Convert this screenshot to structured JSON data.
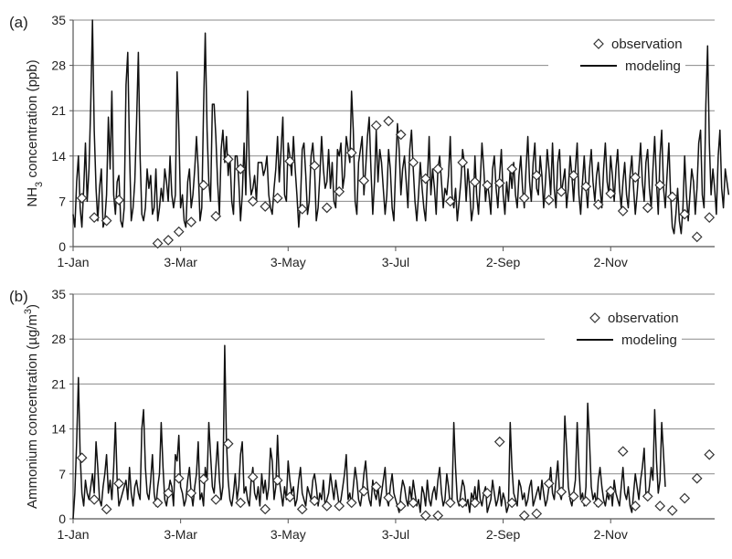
{
  "chart_data": [
    {
      "panel_label": "(a)",
      "type": "line",
      "ylabel_main": "NH",
      "ylabel_sub": "3",
      "ylabel_rest": " concentration (ppb)",
      "ylim": [
        0,
        35
      ],
      "yticks": [
        0,
        7,
        14,
        21,
        28,
        35
      ],
      "xlim": [
        1,
        365
      ],
      "xtick_labels": [
        "1-Jan",
        "3-Mar",
        "3-May",
        "3-Jul",
        "2-Sep",
        "2-Nov"
      ],
      "xtick_days": [
        1,
        62,
        123,
        184,
        245,
        306
      ],
      "grid": "horizontal",
      "legend_position": "top-right",
      "legend": {
        "observation": "observation",
        "modeling": "modeling"
      },
      "series": [
        {
          "name": "modeling",
          "style": "line",
          "x_day_step": 1,
          "values": [
            5,
            3,
            10,
            14,
            6,
            3,
            9,
            16,
            7,
            12,
            22,
            35,
            18,
            9,
            4,
            9,
            12,
            3,
            4,
            8,
            20,
            12,
            24,
            8,
            5,
            10,
            11,
            4,
            3,
            6,
            25,
            30,
            15,
            4,
            6,
            10,
            19,
            30,
            14,
            5,
            4,
            6,
            12,
            9,
            11,
            5,
            6,
            12,
            4,
            6,
            9,
            7,
            12,
            10,
            7,
            14,
            8,
            6,
            8,
            27,
            18,
            6,
            8,
            4,
            3,
            10,
            12,
            6,
            8,
            12,
            17,
            12,
            4,
            6,
            21,
            33,
            18,
            10,
            7,
            22,
            22,
            17,
            10,
            5,
            15,
            18,
            13,
            17,
            11,
            14,
            7,
            5,
            14,
            14,
            10,
            4,
            8,
            16,
            8,
            24,
            12,
            8,
            9,
            11,
            7,
            13,
            13,
            13,
            11,
            12,
            14,
            8,
            6,
            5,
            9,
            12,
            17,
            10,
            15,
            20,
            8,
            7,
            16,
            14,
            11,
            17,
            12,
            8,
            3,
            7,
            15,
            16,
            11,
            5,
            7,
            14,
            16,
            12,
            4,
            6,
            11,
            17,
            12,
            9,
            10,
            15,
            9,
            13,
            7,
            6,
            15,
            14,
            16,
            9,
            11,
            17,
            15,
            13,
            24,
            18,
            7,
            5,
            13,
            15,
            17,
            8,
            12,
            17,
            20,
            12,
            5,
            10,
            18,
            10,
            15,
            13,
            9,
            5,
            8,
            15,
            12,
            6,
            4,
            12,
            19,
            15,
            8,
            12,
            14,
            10,
            6,
            15,
            18,
            12,
            7,
            4,
            8,
            13,
            9,
            6,
            4,
            10,
            17,
            8,
            12,
            9,
            5,
            12,
            14,
            10,
            6,
            9,
            8,
            11,
            17,
            8,
            6,
            9,
            4,
            7,
            10,
            15,
            13,
            7,
            12,
            9,
            4,
            6,
            14,
            8,
            5,
            10,
            16,
            12,
            7,
            10,
            8,
            5,
            12,
            14,
            9,
            6,
            11,
            15,
            8,
            5,
            10,
            7,
            12,
            9,
            13,
            8,
            6,
            11,
            14,
            9,
            6,
            12,
            17,
            10,
            7,
            13,
            16,
            9,
            8,
            14,
            11,
            6,
            10,
            15,
            12,
            8,
            16,
            9,
            6,
            13,
            15,
            8,
            10,
            12,
            6,
            9,
            14,
            11,
            7,
            12,
            16,
            8,
            5,
            10,
            14,
            9,
            6,
            12,
            15,
            10,
            7,
            11,
            13,
            9,
            6,
            12,
            16,
            10,
            8,
            14,
            11,
            7,
            12,
            15,
            9,
            6,
            10,
            13,
            8,
            6,
            11,
            14,
            9,
            5,
            8,
            12,
            16,
            10,
            7,
            13,
            15,
            9,
            6,
            12,
            17,
            10,
            5,
            14,
            18,
            9,
            6,
            11,
            16,
            8,
            3,
            2,
            5,
            9,
            4,
            2,
            6,
            14,
            8,
            4,
            8,
            12,
            10,
            5,
            9,
            16,
            18,
            8,
            6,
            22,
            31,
            16,
            8,
            12,
            9,
            5,
            14,
            18,
            9,
            6,
            12,
            10,
            8
          ]
        },
        {
          "name": "observation",
          "style": "marker",
          "x": [
            6,
            13,
            20,
            27,
            49,
            55,
            61,
            68,
            75,
            82,
            89,
            96,
            103,
            110,
            117,
            124,
            131,
            138,
            145,
            152,
            159,
            166,
            173,
            180,
            187,
            194,
            201,
            208,
            215,
            222,
            229,
            236,
            243,
            250,
            257,
            264,
            271,
            278,
            285,
            292,
            299,
            306,
            313,
            320,
            327,
            334,
            341,
            348,
            355,
            362
          ],
          "y": [
            7.5,
            4.5,
            4,
            7.2,
            0.5,
            1,
            2.3,
            3.8,
            9.5,
            4.7,
            13.5,
            12,
            7,
            6.2,
            7.5,
            13.2,
            5.8,
            12.5,
            6,
            8.5,
            14.5,
            10.2,
            18.7,
            19.4,
            17.3,
            13,
            10.5,
            12,
            7,
            13,
            10,
            9.5,
            9.8,
            12,
            7.5,
            11,
            7.2,
            8.5,
            11,
            9.3,
            6.5,
            8.2,
            5.5,
            10.7,
            6,
            9.5,
            7.7,
            5,
            1.5,
            4.5
          ]
        }
      ]
    },
    {
      "panel_label": "(b)",
      "type": "line",
      "ylabel_main": "Ammonium concentration (µg/m",
      "ylabel_sup": "3",
      "ylabel_rest": ")",
      "ylim": [
        0,
        35
      ],
      "yticks": [
        0,
        7,
        14,
        21,
        28,
        35
      ],
      "xlim": [
        1,
        365
      ],
      "xtick_labels": [
        "1-Jan",
        "3-Mar",
        "3-May",
        "3-Jul",
        "2-Sep",
        "2-Nov"
      ],
      "xtick_days": [
        1,
        62,
        123,
        184,
        245,
        306
      ],
      "grid": "horizontal",
      "legend_position": "top-right",
      "legend": {
        "observation": "observation",
        "modeling": "modeling"
      },
      "series": [
        {
          "name": "modeling",
          "style": "line",
          "x_day_step": 1,
          "values": [
            0,
            4,
            12,
            22,
            10,
            4,
            2,
            6,
            4,
            3,
            5,
            7,
            4,
            12,
            8,
            3,
            2,
            5,
            7,
            10,
            4,
            6,
            3,
            8,
            15,
            6,
            2,
            3,
            4,
            5,
            6,
            3,
            8,
            4,
            2,
            5,
            6,
            4,
            3,
            14,
            17,
            8,
            4,
            3,
            6,
            10,
            4,
            2,
            5,
            7,
            15,
            8,
            3,
            2,
            4,
            6,
            5,
            2,
            10,
            9,
            13,
            5,
            4,
            2,
            3,
            6,
            8,
            4,
            2,
            5,
            7,
            12,
            3,
            4,
            2,
            8,
            6,
            15,
            10,
            5,
            4,
            8,
            12,
            6,
            3,
            5,
            27,
            12,
            6,
            3,
            2,
            4,
            7,
            3,
            5,
            10,
            12,
            4,
            5,
            3,
            2,
            6,
            8,
            4,
            3,
            5,
            2,
            7,
            4,
            6,
            3,
            5,
            11,
            9,
            3,
            5,
            13,
            6,
            4,
            2,
            5,
            3,
            9,
            6,
            4,
            5,
            2,
            3,
            6,
            8,
            4,
            3,
            2,
            5,
            4,
            3,
            6,
            7,
            5,
            2,
            4,
            3,
            6,
            2,
            3,
            4,
            7,
            5,
            3,
            6,
            4,
            2,
            3,
            5,
            7,
            10,
            3,
            4,
            2,
            5,
            8,
            6,
            3,
            2,
            4,
            7,
            9,
            5,
            3,
            2,
            6,
            4,
            3,
            5,
            2,
            4,
            6,
            8,
            3,
            2,
            5,
            7,
            4,
            3,
            2,
            1,
            4,
            6,
            5,
            3,
            2,
            5,
            3,
            6,
            4,
            2,
            3,
            1,
            5,
            4,
            2,
            6,
            3,
            2,
            4,
            5,
            3,
            6,
            8,
            4,
            2,
            3,
            7,
            5,
            2,
            3,
            15,
            8,
            3,
            2,
            4,
            6,
            5,
            2,
            3,
            1,
            4,
            3,
            5,
            2,
            6,
            3,
            2,
            4,
            5,
            1,
            2,
            3,
            6,
            4,
            2,
            3,
            5,
            2,
            4,
            3,
            1,
            2,
            15,
            8,
            4,
            3,
            2,
            6,
            5,
            3,
            4,
            2,
            3,
            5,
            6,
            2,
            3,
            4,
            5,
            3,
            6,
            4,
            2,
            3,
            5,
            8,
            4,
            3,
            6,
            9,
            4,
            3,
            5,
            16,
            11,
            5,
            3,
            2,
            4,
            6,
            15,
            8,
            3,
            4,
            2,
            5,
            18,
            12,
            5,
            3,
            4,
            2,
            6,
            8,
            5,
            3,
            2,
            4,
            3,
            5,
            2,
            6,
            4,
            3,
            2,
            5,
            8,
            4,
            3,
            5,
            2,
            1,
            4,
            7,
            5,
            3,
            6,
            8,
            11,
            4,
            3,
            5,
            8,
            6,
            17,
            9,
            4,
            6,
            15,
            10,
            5
          ]
        },
        {
          "name": "observation",
          "style": "marker",
          "x": [
            6,
            13,
            20,
            27,
            49,
            55,
            61,
            68,
            75,
            82,
            89,
            96,
            103,
            110,
            117,
            124,
            131,
            138,
            145,
            152,
            159,
            166,
            173,
            180,
            187,
            194,
            201,
            208,
            215,
            222,
            229,
            236,
            243,
            250,
            257,
            264,
            271,
            278,
            285,
            292,
            299,
            306,
            313,
            320,
            327,
            334,
            341,
            348,
            355,
            362
          ],
          "y": [
            9.5,
            3,
            1.5,
            5.5,
            2.5,
            4,
            6.3,
            4,
            6.2,
            3,
            11.7,
            2.5,
            6.5,
            1.5,
            6,
            3.4,
            1.5,
            2.8,
            2,
            2,
            2.5,
            4.3,
            5,
            3.3,
            2,
            2.5,
            0.5,
            0.5,
            2.5,
            2.5,
            2.5,
            4,
            12,
            2.5,
            0.5,
            0.8,
            5.5,
            4.2,
            3.5,
            2.7,
            2.5,
            4.3,
            10.5,
            2,
            3.5,
            2,
            1.3,
            3.2,
            6.3,
            10
          ]
        }
      ]
    }
  ]
}
